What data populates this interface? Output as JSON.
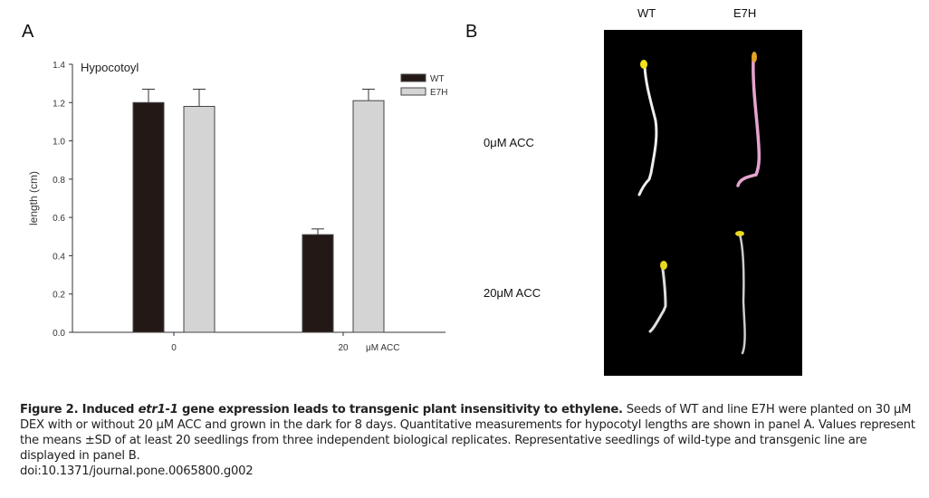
{
  "panels": {
    "a_label": "A",
    "b_label": "B"
  },
  "chart_data": {
    "type": "bar",
    "title": "Hypocotoyl",
    "ylabel": "length (cm)",
    "xlabel": "μM ACC",
    "categories": [
      "0",
      "20"
    ],
    "ylim": [
      0,
      1.4
    ],
    "yticks": [
      "0.0",
      "0.2",
      "0.4",
      "0.6",
      "0.8",
      "1.0",
      "1.2",
      "1.4"
    ],
    "grid": false,
    "legend_position": "top-right",
    "series": [
      {
        "name": "WT",
        "color": "#231815",
        "values": [
          1.2,
          0.51
        ],
        "error": [
          0.07,
          0.03
        ]
      },
      {
        "name": "E7H",
        "color": "#d4d4d4",
        "values": [
          1.18,
          1.21
        ],
        "error": [
          0.09,
          0.06
        ]
      }
    ]
  },
  "photo": {
    "columns": [
      "WT",
      "E7H"
    ],
    "rows": [
      "0μM ACC",
      "20μM ACC"
    ]
  },
  "caption": {
    "title_pre": "Figure 2. Induced ",
    "title_gene": "etr1-1",
    "title_post": " gene expression leads to transgenic plant insensitivity to ethylene.",
    "body": " Seeds of WT and line E7H were planted on 30 μM DEX with or without 20 μM ACC and grown in the dark for 8 days. Quantitative measurements for hypocotyl lengths are shown in panel A. Values represent the means ±SD of at least 20 seedlings from three independent biological replicates. Representative seedlings of wild-type and transgenic line are displayed in panel B.",
    "doi": "doi:10.1371/journal.pone.0065800.g002"
  }
}
